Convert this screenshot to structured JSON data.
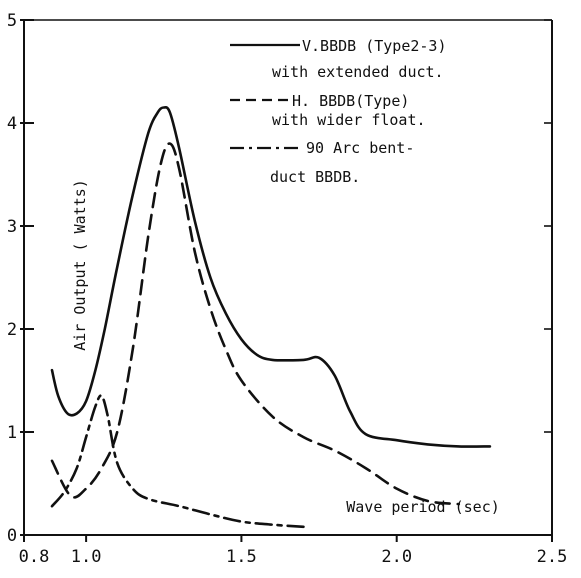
{
  "chart_data": {
    "type": "line",
    "xlabel": "Wave period (sec)",
    "ylabel": "Air Output ( Watts)",
    "xlim": [
      0.8,
      2.5
    ],
    "ylim": [
      0,
      5
    ],
    "x_ticks": [
      0.8,
      1.0,
      1.5,
      2.0,
      2.5
    ],
    "x_tick_labels": [
      "0.8",
      "1.0",
      "1.5",
      "2.0",
      "2.5"
    ],
    "y_ticks": [
      0,
      1,
      2,
      3,
      4,
      5
    ],
    "y_tick_labels": [
      "0",
      "1",
      "2",
      "3",
      "4",
      "5"
    ],
    "grid": false,
    "legend_position": "top-right",
    "legend": [
      {
        "label_lines": [
          "V.BBDB (Type2-3)",
          "with extended duct."
        ],
        "style": "solid"
      },
      {
        "label_lines": [
          "H. BBDB(Type)",
          "with wider float."
        ],
        "style": "dashed"
      },
      {
        "label_lines": [
          "90 Arc bent-",
          "duct BBDB."
        ],
        "style": "dashdot"
      }
    ],
    "series": [
      {
        "name": "V.BBDB (Type2-3) with extended duct.",
        "style": "solid",
        "x": [
          0.89,
          0.91,
          0.94,
          0.97,
          1.0,
          1.03,
          1.06,
          1.1,
          1.15,
          1.2,
          1.23,
          1.25,
          1.27,
          1.3,
          1.35,
          1.4,
          1.45,
          1.5,
          1.55,
          1.6,
          1.7,
          1.75,
          1.8,
          1.85,
          1.9,
          2.0,
          2.1,
          2.2,
          2.3
        ],
        "y": [
          1.6,
          1.35,
          1.18,
          1.18,
          1.3,
          1.6,
          2.0,
          2.6,
          3.3,
          3.9,
          4.1,
          4.15,
          4.1,
          3.75,
          3.05,
          2.5,
          2.15,
          1.9,
          1.75,
          1.7,
          1.7,
          1.72,
          1.55,
          1.2,
          0.98,
          0.92,
          0.88,
          0.86,
          0.86
        ]
      },
      {
        "name": "H. BBDB(Type) with wider float.",
        "style": "dashed",
        "x": [
          0.89,
          0.95,
          1.0,
          1.05,
          1.1,
          1.15,
          1.2,
          1.24,
          1.27,
          1.3,
          1.35,
          1.4,
          1.45,
          1.5,
          1.6,
          1.7,
          1.8,
          1.9,
          2.0,
          2.1,
          2.2
        ],
        "y": [
          0.72,
          0.38,
          0.45,
          0.65,
          1.0,
          1.8,
          2.9,
          3.6,
          3.8,
          3.55,
          2.75,
          2.2,
          1.8,
          1.5,
          1.15,
          0.95,
          0.82,
          0.65,
          0.45,
          0.33,
          0.3
        ]
      },
      {
        "name": "90 Arc bent- duct BBDB.",
        "style": "dashdot",
        "x": [
          0.89,
          0.93,
          0.97,
          1.0,
          1.03,
          1.05,
          1.07,
          1.1,
          1.15,
          1.2,
          1.3,
          1.4,
          1.5,
          1.6,
          1.7
        ],
        "y": [
          0.28,
          0.42,
          0.65,
          0.95,
          1.25,
          1.35,
          1.15,
          0.7,
          0.45,
          0.35,
          0.28,
          0.2,
          0.13,
          0.1,
          0.08
        ]
      }
    ]
  }
}
